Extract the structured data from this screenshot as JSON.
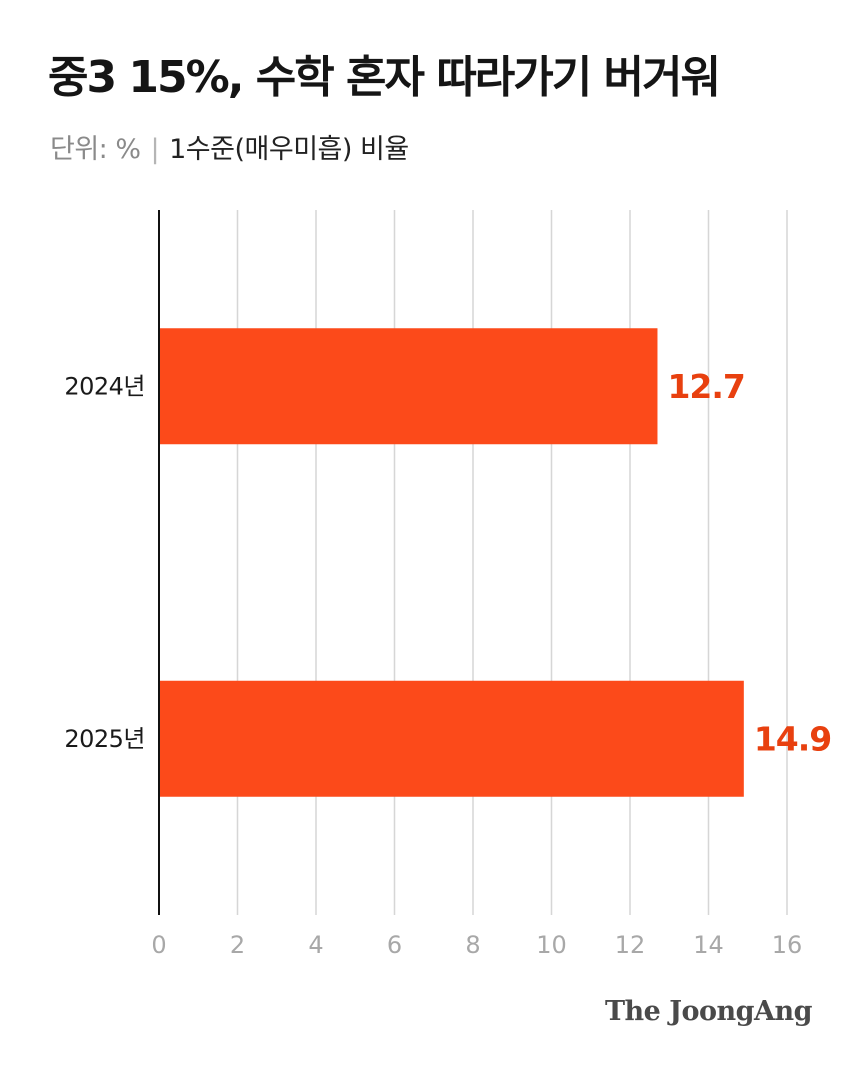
{
  "header": {
    "title": "중3 15%, 수학 혼자 따라가기 버거워",
    "unit_label": "단위: %",
    "separator": "|",
    "description": "1수준(매우미흡) 비율"
  },
  "footer": {
    "brand": "The JoongAng"
  },
  "colors": {
    "bar": "#fc4a1a",
    "value_label": "#e8400f",
    "axis": "#111111",
    "grid": "#d6d6d6",
    "tick_label": "#a8a8a8",
    "category_label": "#1a1a1a"
  },
  "chart_data": {
    "type": "bar",
    "orientation": "horizontal",
    "categories": [
      "2024년",
      "2025년"
    ],
    "values": [
      12.7,
      14.9
    ],
    "value_labels": [
      "12.7",
      "14.9"
    ],
    "xlim": [
      0,
      16
    ],
    "x_ticks": [
      0,
      2,
      4,
      6,
      8,
      10,
      12,
      14,
      16
    ],
    "grid": true,
    "legend": "none"
  }
}
